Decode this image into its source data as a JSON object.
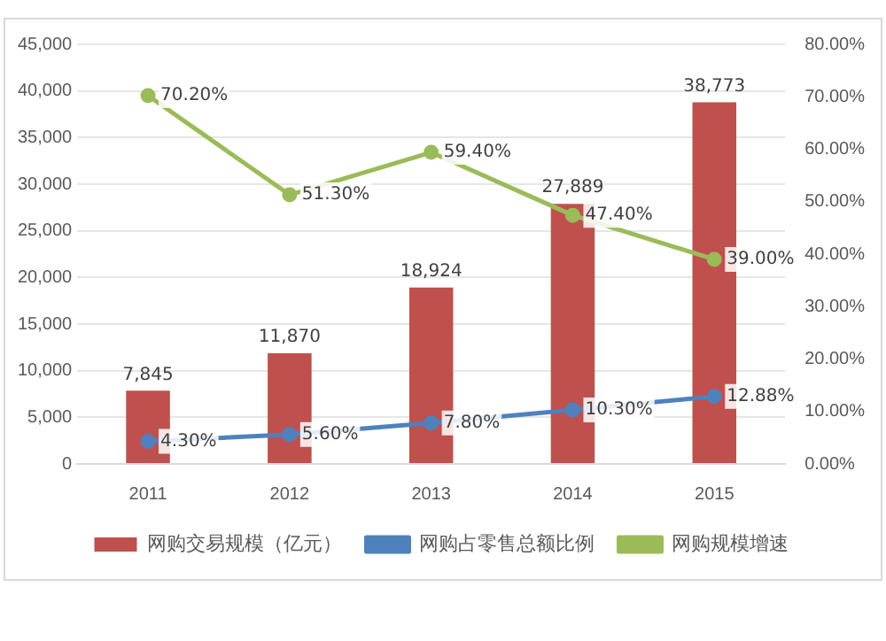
{
  "chart_data": {
    "type": "bar",
    "categories": [
      "2011",
      "2012",
      "2013",
      "2014",
      "2015"
    ],
    "series": [
      {
        "name": "网购交易规模（亿元）",
        "color": "#c0504d",
        "values": [
          7845,
          11870,
          18924,
          27889,
          38773
        ],
        "value_labels": [
          "7,845",
          "11,870",
          "18,924",
          "27,889",
          "38,773"
        ]
      },
      {
        "name": "网购占零售总额比例",
        "type": "line",
        "axis": "y2",
        "color": "#4f81bd",
        "values": [
          4.3,
          5.6,
          7.8,
          10.3,
          12.88
        ],
        "value_labels": [
          "4.30%",
          "5.60%",
          "7.80%",
          "10.30%",
          "12.88%"
        ]
      },
      {
        "name": "网购规模增速",
        "type": "line",
        "axis": "y2",
        "color": "#9bbb59",
        "values": [
          70.2,
          51.3,
          59.4,
          47.4,
          39.0
        ],
        "value_labels": [
          "70.20%",
          "51.30%",
          "59.40%",
          "47.40%",
          "39.00%"
        ]
      }
    ],
    "ylim": [
      0,
      45000
    ],
    "yticks": [
      {
        "value": 0,
        "label": "0"
      },
      {
        "value": 5000,
        "label": "5,000"
      },
      {
        "value": 10000,
        "label": "10,000"
      },
      {
        "value": 15000,
        "label": "15,000"
      },
      {
        "value": 20000,
        "label": "20,000"
      },
      {
        "value": 25000,
        "label": "25,000"
      },
      {
        "value": 30000,
        "label": "30,000"
      },
      {
        "value": 35000,
        "label": "35,000"
      },
      {
        "value": 40000,
        "label": "40,000"
      },
      {
        "value": 45000,
        "label": "45,000"
      }
    ],
    "y2lim": [
      0,
      80
    ],
    "y2ticks": [
      {
        "value": 0,
        "label": "0.00%"
      },
      {
        "value": 10,
        "label": "10.00%"
      },
      {
        "value": 20,
        "label": "20.00%"
      },
      {
        "value": 30,
        "label": "30.00%"
      },
      {
        "value": 40,
        "label": "40.00%"
      },
      {
        "value": 50,
        "label": "50.00%"
      },
      {
        "value": 60,
        "label": "60.00%"
      },
      {
        "value": 70,
        "label": "70.00%"
      },
      {
        "value": 80,
        "label": "80.00%"
      }
    ],
    "grid": "y",
    "legend": "bottom",
    "marker": "circle"
  }
}
